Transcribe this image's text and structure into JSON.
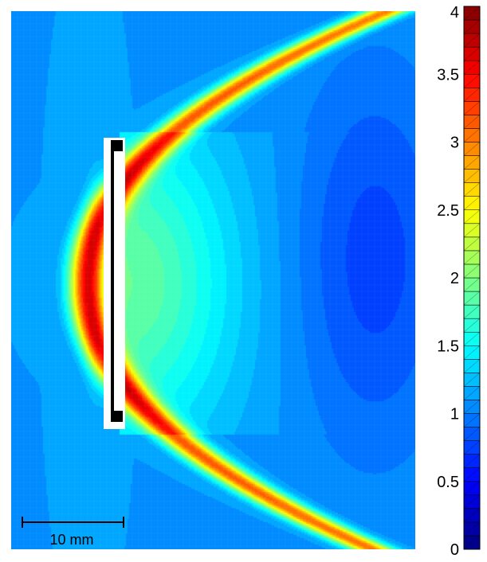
{
  "chart_data": {
    "type": "heatmap",
    "title": "",
    "xlabel": "",
    "ylabel": "",
    "colormap": "jet",
    "colorbar": {
      "min": 0,
      "max": 4,
      "levels": 40,
      "ticks": [
        {
          "value": 0,
          "label": "0"
        },
        {
          "value": 0.5,
          "label": "0.5"
        },
        {
          "value": 1,
          "label": "1"
        },
        {
          "value": 1.5,
          "label": "1.5"
        },
        {
          "value": 2,
          "label": "2"
        },
        {
          "value": 2.5,
          "label": "2.5"
        },
        {
          "value": 3,
          "label": "3"
        },
        {
          "value": 3.5,
          "label": "3.5"
        },
        {
          "value": 4,
          "label": "4"
        }
      ]
    },
    "background_value": 1.1,
    "field_features": [
      {
        "name": "arc band",
        "peak_value": 3.3
      },
      {
        "name": "near-electrode maximum",
        "peak_value": 3.9
      },
      {
        "name": "inner plume",
        "peak_value": 1.9
      },
      {
        "name": "right-side low",
        "peak_value": 0.75
      }
    ],
    "scale_bar": {
      "length_mm": 10,
      "label": "10 mm"
    }
  }
}
